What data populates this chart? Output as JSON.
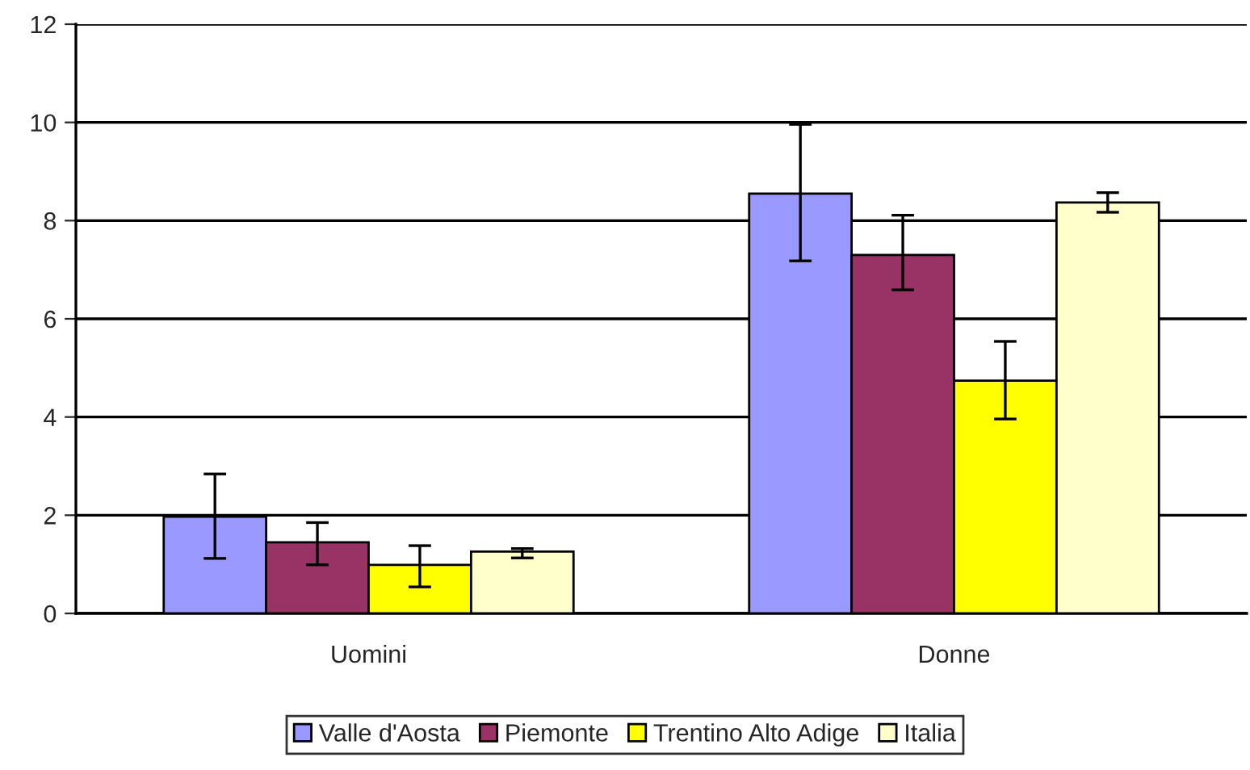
{
  "chart_data": {
    "type": "bar",
    "categories": [
      "Uomini",
      "Donne"
    ],
    "series": [
      {
        "name": "Valle d'Aosta",
        "color": "#9999ff",
        "values": [
          1.97,
          8.55
        ],
        "errors": [
          [
            1.12,
            2.84
          ],
          [
            7.18,
            9.96
          ]
        ]
      },
      {
        "name": "Piemonte",
        "color": "#993366",
        "values": [
          1.45,
          7.3
        ],
        "errors": [
          [
            0.99,
            1.85
          ],
          [
            6.59,
            8.11
          ]
        ]
      },
      {
        "name": "Trentino Alto Adige",
        "color": "#ffff00",
        "values": [
          0.99,
          4.74
        ],
        "errors": [
          [
            0.54,
            1.38
          ],
          [
            3.96,
            5.54
          ]
        ]
      },
      {
        "name": "Italia",
        "color": "#ffffcc",
        "values": [
          1.26,
          8.37
        ],
        "errors": [
          [
            1.13,
            1.32
          ],
          [
            8.17,
            8.57
          ]
        ]
      }
    ],
    "ylim": [
      0,
      12
    ],
    "yticks": [
      0,
      2,
      4,
      6,
      8,
      10,
      12
    ],
    "grid": "y",
    "legend": "bottom"
  }
}
